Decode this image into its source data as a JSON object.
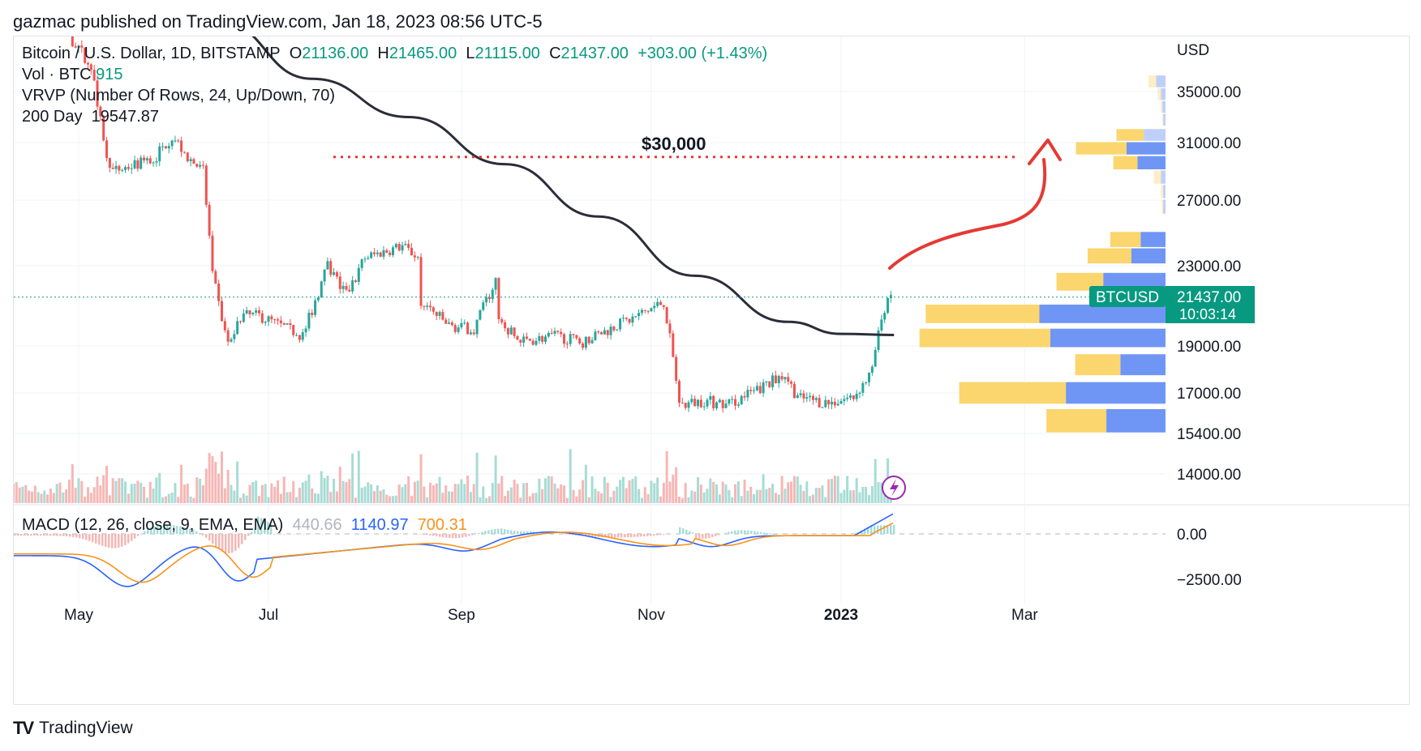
{
  "publisher_line": "gazmac published on TradingView.com, Jan 18, 2023 08:56 UTC-5",
  "legend": {
    "symbol": "Bitcoin / U.S. Dollar, 1D, BITSTAMP",
    "o_label": "O",
    "o": "21136.00",
    "h_label": "H",
    "h": "21465.00",
    "l_label": "L",
    "l": "21115.00",
    "c_label": "C",
    "c": "21437.00",
    "change": "+303.00 (+1.43%)",
    "vol_label": "Vol · BTC",
    "vol": "915",
    "vrvp": "VRVP (Number Of Rows, 24, Up/Down, 70)",
    "ma_label": "200 Day",
    "ma": "19547.87",
    "macd_label": "MACD (12, 26, close, 9, EMA, EMA)",
    "macd_hist": "440.66",
    "macd_line": "1140.97",
    "macd_signal": "700.31"
  },
  "annotation": "$30,000",
  "price_badge": {
    "symbol": "BTCUSD",
    "price": "21437.00",
    "countdown": "10:03:14"
  },
  "footer": {
    "logo": "TV",
    "brand": "TradingView"
  },
  "colors": {
    "up": "#26a69a",
    "down": "#ef5350",
    "ma": "#2a2e39",
    "macd": "#2962ff",
    "signal": "#f7931a",
    "annotation": "#e53935",
    "vp_up": "#fbd56e",
    "vp_down": "#6f96f5"
  },
  "chart_data": {
    "type": "candlestick",
    "currency_label": "USD",
    "x_ticks": [
      "May",
      "Jul",
      "Sep",
      "Nov",
      "2023",
      "Mar"
    ],
    "y_ticks": [
      "35000.00",
      "31000.00",
      "27000.00",
      "23000.00",
      "19000.00",
      "17000.00",
      "15400.00",
      "14000.00"
    ],
    "macd_ticks": [
      "0.00",
      "−2500.00"
    ],
    "price_path": [
      [
        "2022-04-08",
        43500
      ],
      [
        "2022-04-20",
        41500
      ],
      [
        "2022-05-01",
        38500
      ],
      [
        "2022-05-06",
        36000
      ],
      [
        "2022-05-09",
        31000
      ],
      [
        "2022-05-12",
        29000
      ],
      [
        "2022-05-20",
        29500
      ],
      [
        "2022-05-25",
        29800
      ],
      [
        "2022-05-31",
        31500
      ],
      [
        "2022-06-05",
        30000
      ],
      [
        "2022-06-10",
        29000
      ],
      [
        "2022-06-13",
        22500
      ],
      [
        "2022-06-18",
        19000
      ],
      [
        "2022-06-22",
        20500
      ],
      [
        "2022-06-28",
        20500
      ],
      [
        "2022-07-05",
        20000
      ],
      [
        "2022-07-12",
        19500
      ],
      [
        "2022-07-20",
        23000
      ],
      [
        "2022-07-26",
        21500
      ],
      [
        "2022-08-01",
        23500
      ],
      [
        "2022-08-13",
        24200
      ],
      [
        "2022-08-18",
        23500
      ],
      [
        "2022-08-19",
        21200
      ],
      [
        "2022-08-28",
        20000
      ],
      [
        "2022-09-05",
        19800
      ],
      [
        "2022-09-12",
        22300
      ],
      [
        "2022-09-13",
        20200
      ],
      [
        "2022-09-20",
        19200
      ],
      [
        "2022-10-01",
        19500
      ],
      [
        "2022-10-10",
        19200
      ],
      [
        "2022-10-25",
        20300
      ],
      [
        "2022-11-05",
        21200
      ],
      [
        "2022-11-08",
        18500
      ],
      [
        "2022-11-10",
        16500
      ],
      [
        "2022-11-18",
        16700
      ],
      [
        "2022-11-25",
        16500
      ],
      [
        "2022-12-05",
        17100
      ],
      [
        "2022-12-14",
        17800
      ],
      [
        "2022-12-18",
        16800
      ],
      [
        "2022-12-28",
        16600
      ],
      [
        "2023-01-05",
        16850
      ],
      [
        "2023-01-11",
        17900
      ],
      [
        "2023-01-13",
        19800
      ],
      [
        "2023-01-15",
        20900
      ],
      [
        "2023-01-18",
        21437
      ]
    ],
    "ma200_path": [
      [
        "2022-05-15",
        45000
      ],
      [
        "2022-06-15",
        40500
      ],
      [
        "2022-07-15",
        36000
      ],
      [
        "2022-08-15",
        33000
      ],
      [
        "2022-09-15",
        29500
      ],
      [
        "2022-10-15",
        26000
      ],
      [
        "2022-11-15",
        22500
      ],
      [
        "2022-12-15",
        20200
      ],
      [
        "2023-01-01",
        19600
      ],
      [
        "2023-01-18",
        19547.87
      ]
    ],
    "projection": "curved arrow rising from ~23000 toward ~31000 in late Feb 2023",
    "horizontal_line": {
      "value": 30000,
      "style": "dotted",
      "label": "$30,000"
    },
    "volume_profile": [
      {
        "price": 35800,
        "up": 1.0,
        "down": 1.2
      },
      {
        "price": 34800,
        "up": 0.4,
        "down": 0.6
      },
      {
        "price": 33800,
        "up": 0.2,
        "down": 0.4
      },
      {
        "price": 32800,
        "up": 0.1,
        "down": 0.3
      },
      {
        "price": 31600,
        "up": 3.5,
        "down": 2.8
      },
      {
        "price": 30600,
        "up": 6.5,
        "down": 5.0
      },
      {
        "price": 29600,
        "up": 3.1,
        "down": 3.6
      },
      {
        "price": 28600,
        "up": 0.9,
        "down": 0.6
      },
      {
        "price": 27600,
        "up": 0.3,
        "down": 0.3
      },
      {
        "price": 26600,
        "up": 0.2,
        "down": 0.3
      },
      {
        "price": 24600,
        "up": 3.9,
        "down": 3.2
      },
      {
        "price": 23600,
        "up": 5.6,
        "down": 4.4
      },
      {
        "price": 22200,
        "up": 6.0,
        "down": 8.0
      },
      {
        "price": 20600,
        "up": 14.6,
        "down": 16.2
      },
      {
        "price": 19400,
        "up": 16.8,
        "down": 14.8
      },
      {
        "price": 18200,
        "up": 5.8,
        "down": 5.8
      },
      {
        "price": 17000,
        "up": 13.7,
        "down": 12.8
      },
      {
        "price": 15900,
        "up": 7.7,
        "down": 7.6
      }
    ]
  }
}
